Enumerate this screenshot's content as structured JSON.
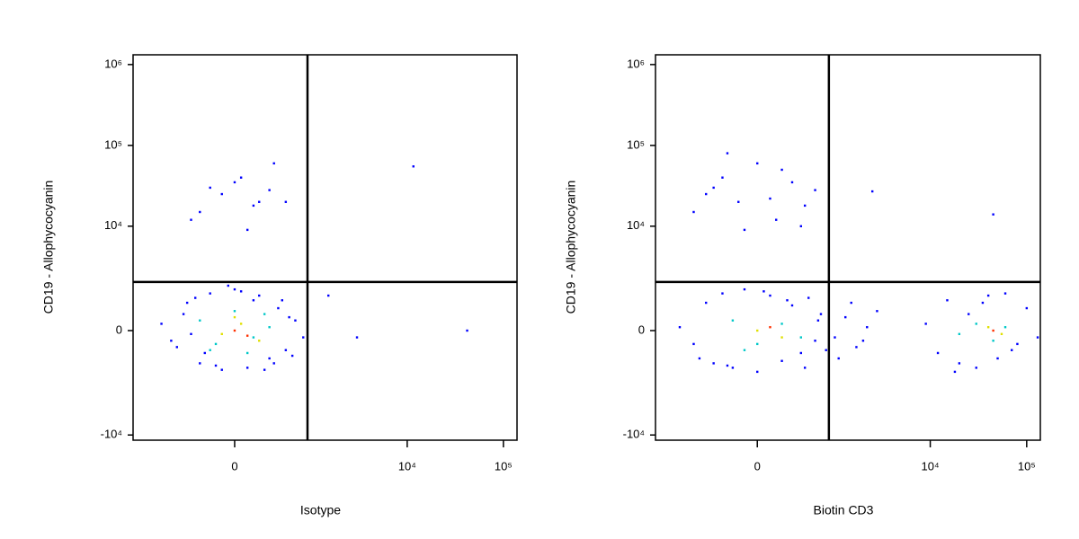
{
  "chart_data": [
    {
      "type": "scatter",
      "scale": "biexponential",
      "x_label": "Isotype",
      "y_label": "CD19 - Allophycocyanin",
      "xlim": [
        -1816,
        138500
      ],
      "ylim": [
        -11600,
        1320000
      ],
      "xticks": [
        0,
        {
          "value": 10000,
          "label": "10⁴"
        },
        {
          "value": 100000,
          "label": "10⁵"
        }
      ],
      "yticks": [
        {
          "value": -10000,
          "label": "-10⁴"
        },
        0,
        {
          "value": 10000,
          "label": "10⁴"
        },
        {
          "value": 100000,
          "label": "10⁵"
        },
        {
          "value": 1000000,
          "label": "10⁶"
        }
      ],
      "gates": {
        "x": 892,
        "y": 1921
      },
      "series": [
        {
          "color": "#0000ff",
          "x": [
            -900,
            -700,
            -600,
            -500,
            -450,
            -400,
            -350,
            -300,
            -250,
            -200,
            -150,
            -100,
            -50,
            0,
            50,
            100,
            150,
            200,
            250,
            300,
            350,
            400,
            450,
            500,
            550,
            600,
            650,
            800,
            -300,
            -100,
            50,
            200,
            350,
            -400,
            0,
            150,
            300,
            -200,
            100,
            500,
            11600,
            42000,
            1500,
            3000
          ],
          "values": [
            200,
            -300,
            -500,
            500,
            900,
            -100,
            1100,
            -1100,
            -700,
            1300,
            -1200,
            -1400,
            1700,
            1500,
            1400,
            -1300,
            1000,
            1200,
            -1400,
            -900,
            -1100,
            700,
            1000,
            -600,
            400,
            -800,
            300,
            -200,
            15000,
            25000,
            40000,
            20000,
            60000,
            12000,
            35000,
            18000,
            28000,
            30000,
            9000,
            20000,
            55000,
            0,
            1200,
            -200
          ]
        },
        {
          "color": "#00c8c8",
          "x": [
            -300,
            -150,
            0,
            150,
            300,
            -200,
            100,
            250
          ],
          "values": [
            300,
            -400,
            600,
            -200,
            100,
            -600,
            -700,
            500
          ]
        },
        {
          "color": "#e0e000",
          "x": [
            -100,
            50,
            200,
            0
          ],
          "values": [
            -100,
            200,
            -300,
            400
          ]
        },
        {
          "color": "#ff3000",
          "x": [
            0,
            100
          ],
          "values": [
            0,
            -150
          ]
        }
      ]
    },
    {
      "type": "scatter",
      "scale": "biexponential",
      "x_label": "Biotin CD3",
      "y_label": "CD19 - Allophycocyanin",
      "xlim": [
        -1816,
        138500
      ],
      "ylim": [
        -11600,
        1320000
      ],
      "xticks": [
        0,
        {
          "value": 10000,
          "label": "10⁴"
        },
        {
          "value": 100000,
          "label": "10⁵"
        }
      ],
      "yticks": [
        {
          "value": -10000,
          "label": "-10⁴"
        },
        0,
        {
          "value": 10000,
          "label": "10⁴"
        },
        {
          "value": 100000,
          "label": "10⁵"
        },
        {
          "value": 1000000,
          "label": "10⁶"
        }
      ],
      "gates": {
        "x": 860,
        "y": 1921
      },
      "series": [
        {
          "color": "#0000ff",
          "x": [
            -1000,
            -700,
            -500,
            -400,
            -300,
            -200,
            -100,
            0,
            100,
            200,
            300,
            400,
            500,
            600,
            700,
            800,
            -600,
            -250,
            50,
            250,
            450,
            650,
            1000,
            1300,
            1700,
            2200,
            2800,
            1100,
            1500,
            2000,
            9000,
            12000,
            15000,
            20000,
            25000,
            30000,
            40000,
            50000,
            60000,
            80000,
            100000,
            130000,
            18000,
            35000,
            70000,
            -700,
            -500,
            -300,
            -150,
            0,
            150,
            300,
            450,
            600,
            -400,
            -100,
            200,
            400,
            -250,
            100,
            2500,
            45000
          ],
          "values": [
            100,
            -400,
            900,
            -1100,
            1300,
            -1300,
            1500,
            -1500,
            1200,
            -1000,
            800,
            -700,
            1100,
            -300,
            500,
            -600,
            -900,
            -1200,
            1400,
            1000,
            -1300,
            300,
            -200,
            400,
            -500,
            100,
            600,
            -900,
            900,
            -300,
            200,
            -700,
            1000,
            -1100,
            500,
            -1300,
            1200,
            -900,
            1300,
            -400,
            700,
            -200,
            -1500,
            900,
            -600,
            15000,
            25000,
            40000,
            20000,
            60000,
            12000,
            35000,
            18000,
            28000,
            30000,
            9000,
            50000,
            10000,
            80000,
            22000,
            27000,
            14000
          ]
        },
        {
          "color": "#00c8c8",
          "x": [
            -200,
            0,
            200,
            400,
            -100,
            30000,
            45000,
            60000,
            20000
          ],
          "values": [
            300,
            -400,
            200,
            -200,
            -600,
            200,
            -300,
            100,
            -100
          ]
        },
        {
          "color": "#e0e000",
          "x": [
            0,
            200,
            40000,
            55000
          ],
          "values": [
            0,
            -200,
            100,
            -100
          ]
        },
        {
          "color": "#ff3000",
          "x": [
            100,
            45000
          ],
          "values": [
            100,
            0
          ]
        }
      ]
    }
  ]
}
